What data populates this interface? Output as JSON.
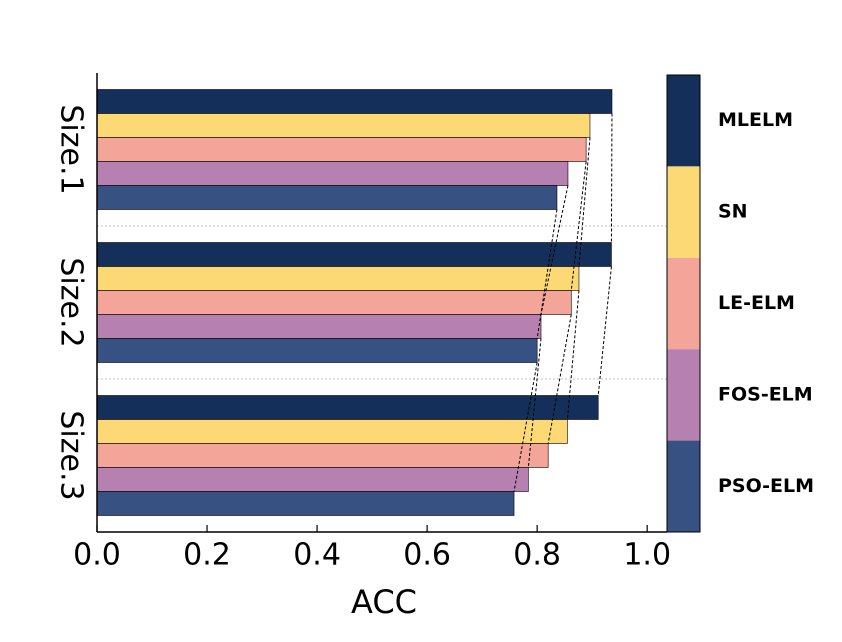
{
  "chart_data": {
    "type": "barh",
    "xlabel": "ACC",
    "categories": [
      "Size.1",
      "Size.2",
      "Size.3"
    ],
    "series": [
      {
        "name": "MLELM",
        "color": "#14305a",
        "values": [
          0.936,
          0.935,
          0.911
        ]
      },
      {
        "name": "SN",
        "color": "#fcd975",
        "values": [
          0.896,
          0.876,
          0.855
        ]
      },
      {
        "name": "LE-ELM",
        "color": "#f4a599",
        "values": [
          0.889,
          0.862,
          0.82
        ]
      },
      {
        "name": "FOS-ELM",
        "color": "#b680b0",
        "values": [
          0.856,
          0.807,
          0.784
        ]
      },
      {
        "name": "PSO-ELM",
        "color": "#375183",
        "values": [
          0.836,
          0.8,
          0.758
        ]
      }
    ],
    "xlim": [
      0,
      1.036
    ],
    "xticks": [
      {
        "value": 0,
        "label": "0.0"
      },
      {
        "value": 0.2,
        "label": "0.2"
      },
      {
        "value": 0.4,
        "label": "0.4"
      },
      {
        "value": 0.6,
        "label": "0.6"
      },
      {
        "value": 0.8,
        "label": "0.8"
      },
      {
        "value": 1,
        "label": "1.0"
      }
    ]
  }
}
